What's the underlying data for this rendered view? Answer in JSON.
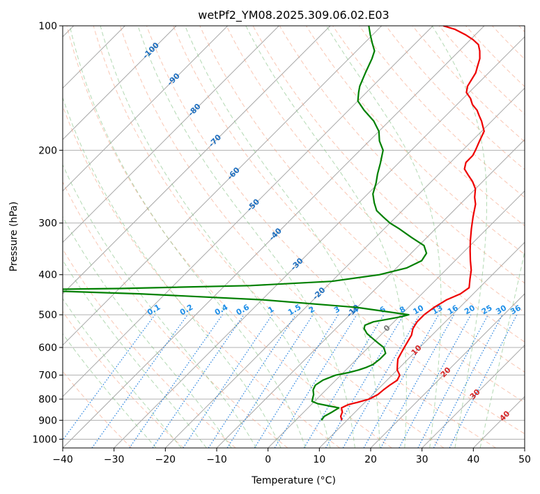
{
  "chart_data": {
    "type": "line",
    "title": "wetPf2_YM08.2025.309.06.02.E03",
    "xlabel": "Temperature (°C)",
    "ylabel": "Pressure (hPa)",
    "xlim": [
      -40,
      50
    ],
    "ylim": [
      1050,
      100
    ],
    "x_ticks": [
      -40,
      -30,
      -20,
      -10,
      0,
      10,
      20,
      30,
      40,
      50
    ],
    "x_tick_labels": [
      "−40",
      "−30",
      "−20",
      "−10",
      "0",
      "10",
      "20",
      "30",
      "40",
      "50"
    ],
    "y_ticks": [
      1000,
      900,
      800,
      700,
      600,
      500,
      400,
      300,
      200,
      100
    ],
    "y_tick_labels": [
      "1000",
      "900",
      "800",
      "700",
      "600",
      "500",
      "400",
      "300",
      "200",
      "100"
    ],
    "skew_isotherm_labels": {
      "blue": [
        {
          "text": "-100",
          "t": -100,
          "p": 115
        },
        {
          "text": "-90",
          "t": -90,
          "p": 135
        },
        {
          "text": "-80",
          "t": -80,
          "p": 160
        },
        {
          "text": "-70",
          "t": -70,
          "p": 190
        },
        {
          "text": "-60",
          "t": -60,
          "p": 228
        },
        {
          "text": "-50",
          "t": -50,
          "p": 272
        },
        {
          "text": "-40",
          "t": -40,
          "p": 320
        },
        {
          "text": "-30",
          "t": -30,
          "p": 378
        },
        {
          "text": "-20",
          "t": -20,
          "p": 445
        },
        {
          "text": "-10",
          "t": -10,
          "p": 490
        }
      ],
      "zero": {
        "text": "0",
        "t": 0,
        "p": 540
      },
      "red": [
        {
          "text": "10",
          "t": 10,
          "p": 610
        },
        {
          "text": "20",
          "t": 20,
          "p": 690
        },
        {
          "text": "30",
          "t": 30,
          "p": 780
        },
        {
          "text": "40",
          "t": 40,
          "p": 880
        }
      ]
    },
    "mixing_ratio_labels": [
      "0.1",
      "0.2",
      "0.4",
      "0.6",
      "1",
      "1.5",
      "2",
      "3",
      "4",
      "6",
      "8",
      "10",
      "13",
      "16",
      "20",
      "25",
      "30",
      "36"
    ],
    "series": [
      {
        "name": "Temperature",
        "color": "#ee0000",
        "points": [
          [
            9.0,
            900
          ],
          [
            8.0,
            880
          ],
          [
            7.5,
            860
          ],
          [
            6.5,
            840
          ],
          [
            7.2,
            825
          ],
          [
            8.5,
            815
          ],
          [
            10.2,
            800
          ],
          [
            11.0,
            780
          ],
          [
            11.2,
            760
          ],
          [
            11.5,
            740
          ],
          [
            12.0,
            720
          ],
          [
            11.5,
            700
          ],
          [
            10.0,
            680
          ],
          [
            9.0,
            660
          ],
          [
            8.0,
            640
          ],
          [
            7.5,
            620
          ],
          [
            7.0,
            600
          ],
          [
            6.5,
            580
          ],
          [
            6.0,
            560
          ],
          [
            5.0,
            540
          ],
          [
            4.5,
            520
          ],
          [
            4.5,
            500
          ],
          [
            5.0,
            480
          ],
          [
            6.0,
            460
          ],
          [
            7.5,
            445
          ],
          [
            8.0,
            430
          ],
          [
            6.5,
            410
          ],
          [
            5.0,
            390
          ],
          [
            3.0,
            370
          ],
          [
            1.0,
            350
          ],
          [
            -1.0,
            330
          ],
          [
            -3.0,
            310
          ],
          [
            -5.0,
            290
          ],
          [
            -7.0,
            270
          ],
          [
            -8.5,
            260
          ],
          [
            -10.0,
            248
          ],
          [
            -12.0,
            238
          ],
          [
            -14.0,
            230
          ],
          [
            -16.0,
            222
          ],
          [
            -17.0,
            214
          ],
          [
            -17.0,
            206
          ],
          [
            -17.5,
            200
          ],
          [
            -18.5,
            190
          ],
          [
            -19.5,
            180
          ],
          [
            -22.0,
            170
          ],
          [
            -23.5,
            165
          ],
          [
            -25.0,
            160
          ],
          [
            -27.0,
            155
          ],
          [
            -28.5,
            150
          ],
          [
            -30.5,
            145
          ],
          [
            -31.5,
            140
          ],
          [
            -32.5,
            130
          ],
          [
            -33.5,
            125
          ],
          [
            -34.5,
            120
          ],
          [
            -36.0,
            115
          ],
          [
            -37.5,
            111
          ],
          [
            -39.5,
            108
          ],
          [
            -42.0,
            105
          ],
          [
            -45.0,
            102
          ],
          [
            -48.0,
            100
          ]
        ]
      },
      {
        "name": "Dewpoint",
        "color": "#008000",
        "points": [
          [
            5.0,
            900
          ],
          [
            4.8,
            880
          ],
          [
            5.5,
            860
          ],
          [
            6.0,
            840
          ],
          [
            3.5,
            830
          ],
          [
            1.0,
            820
          ],
          [
            -0.5,
            810
          ],
          [
            -1.0,
            795
          ],
          [
            -1.5,
            780
          ],
          [
            -2.5,
            760
          ],
          [
            -3.0,
            740
          ],
          [
            -2.5,
            720
          ],
          [
            -1.0,
            700
          ],
          [
            1.0,
            690
          ],
          [
            2.5,
            680
          ],
          [
            3.5,
            670
          ],
          [
            4.2,
            660
          ],
          [
            4.5,
            640
          ],
          [
            4.5,
            620
          ],
          [
            3.0,
            600
          ],
          [
            1.0,
            585
          ],
          [
            -1.0,
            570
          ],
          [
            -3.0,
            555
          ],
          [
            -4.5,
            540
          ],
          [
            -5.0,
            530
          ],
          [
            -4.0,
            520
          ],
          [
            -1.5,
            512
          ],
          [
            0.5,
            505
          ],
          [
            1.5,
            500
          ],
          [
            -10.0,
            480
          ],
          [
            -30.0,
            460
          ],
          [
            -55.0,
            445
          ],
          [
            -80.0,
            435
          ],
          [
            -60.0,
            432
          ],
          [
            -35.0,
            425
          ],
          [
            -20.0,
            415
          ],
          [
            -12.0,
            400
          ],
          [
            -8.0,
            385
          ],
          [
            -6.5,
            370
          ],
          [
            -7.0,
            355
          ],
          [
            -9.0,
            340
          ],
          [
            -13.0,
            325
          ],
          [
            -17.0,
            310
          ],
          [
            -20.0,
            300
          ],
          [
            -22.5,
            290
          ],
          [
            -25.0,
            280
          ],
          [
            -27.0,
            268
          ],
          [
            -29.0,
            255
          ],
          [
            -30.5,
            240
          ],
          [
            -32.0,
            228
          ],
          [
            -33.5,
            215
          ],
          [
            -35.5,
            200
          ],
          [
            -38.0,
            190
          ],
          [
            -40.0,
            180
          ],
          [
            -43.0,
            170
          ],
          [
            -47.0,
            160
          ],
          [
            -50.0,
            152
          ],
          [
            -51.5,
            145
          ],
          [
            -52.5,
            140
          ],
          [
            -54.0,
            130
          ],
          [
            -55.5,
            120
          ],
          [
            -56.5,
            115
          ],
          [
            -58.5,
            110
          ],
          [
            -60.5,
            105
          ],
          [
            -62.5,
            100
          ]
        ]
      }
    ]
  }
}
